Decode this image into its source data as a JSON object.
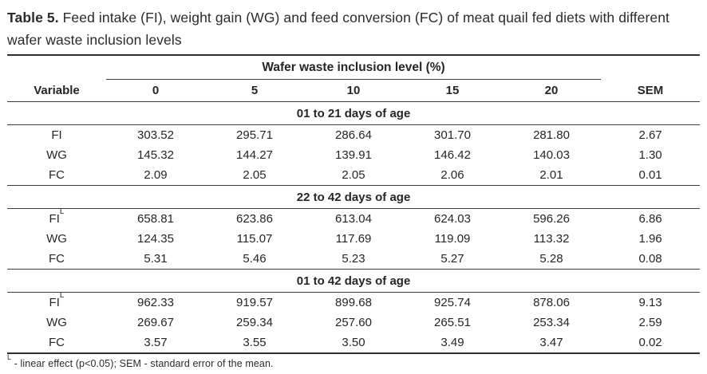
{
  "title": {
    "label": "Table 5.",
    "text": " Feed intake (FI), weight gain (WG) and feed conversion (FC) of meat quail fed diets with different wafer waste inclusion levels"
  },
  "table": {
    "spanner": "Wafer waste inclusion level (%)",
    "columns": [
      "Variable",
      "0",
      "5",
      "10",
      "15",
      "20",
      "SEM"
    ],
    "sections": [
      {
        "header": "01 to 21 days of age",
        "rows": [
          {
            "variable": "FI",
            "sup": "",
            "values": [
              "303.52",
              "295.71",
              "286.64",
              "301.70",
              "281.80",
              "2.67"
            ]
          },
          {
            "variable": "WG",
            "sup": "",
            "values": [
              "145.32",
              "144.27",
              "139.91",
              "146.42",
              "140.03",
              "1.30"
            ]
          },
          {
            "variable": "FC",
            "sup": "",
            "values": [
              "2.09",
              "2.05",
              "2.05",
              "2.06",
              "2.01",
              "0.01"
            ]
          }
        ]
      },
      {
        "header": "22 to 42 days of age",
        "rows": [
          {
            "variable": "FI",
            "sup": "L",
            "values": [
              "658.81",
              "623.86",
              "613.04",
              "624.03",
              "596.26",
              "6.86"
            ]
          },
          {
            "variable": "WG",
            "sup": "",
            "values": [
              "124.35",
              "115.07",
              "117.69",
              "119.09",
              "113.32",
              "1.96"
            ]
          },
          {
            "variable": "FC",
            "sup": "",
            "values": [
              "5.31",
              "5.46",
              "5.23",
              "5.27",
              "5.28",
              "0.08"
            ]
          }
        ]
      },
      {
        "header": "01 to 42 days of age",
        "rows": [
          {
            "variable": "FI",
            "sup": "L",
            "values": [
              "962.33",
              "919.57",
              "899.68",
              "925.74",
              "878.06",
              "9.13"
            ]
          },
          {
            "variable": "WG",
            "sup": "",
            "values": [
              "269.67",
              "259.34",
              "257.60",
              "265.51",
              "253.34",
              "2.59"
            ]
          },
          {
            "variable": "FC",
            "sup": "",
            "values": [
              "3.57",
              "3.55",
              "3.50",
              "3.49",
              "3.47",
              "0.02"
            ]
          }
        ]
      }
    ]
  },
  "footnote": {
    "sup": "L",
    "text": " - linear effect (p<0.05); SEM - standard error of the mean."
  }
}
